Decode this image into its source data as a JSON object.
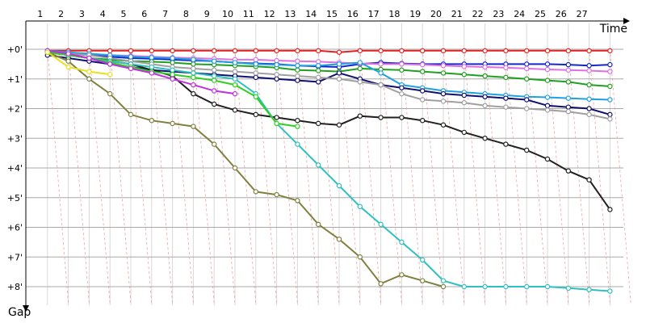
{
  "chart_data": {
    "type": "line",
    "title": "",
    "xlabel": "Time",
    "ylabel": "Gap",
    "x_ticks": [
      "1",
      "2",
      "3",
      "4",
      "5",
      "6",
      "7",
      "8",
      "9",
      "10",
      "11",
      "12",
      "13",
      "14",
      "15",
      "16",
      "17",
      "18",
      "19",
      "20",
      "21",
      "22",
      "23",
      "24",
      "25",
      "26",
      "27"
    ],
    "y_ticks": [
      "+0'",
      "+1'",
      "+2'",
      "+3'",
      "+4'",
      "+5'",
      "+6'",
      "+7'",
      "+8'"
    ],
    "xlim": [
      0,
      28
    ],
    "ylim": [
      0,
      8.5
    ],
    "grid": true,
    "legend": "none",
    "series": [
      {
        "color": "#e62020",
        "x": [
          1,
          2,
          3,
          4,
          5,
          6,
          7,
          8,
          9,
          10,
          11,
          12,
          13,
          14,
          15,
          16,
          17,
          18,
          19,
          20,
          21,
          22,
          23,
          24,
          25,
          26,
          27,
          28
        ],
        "y": [
          0.05,
          0.05,
          0.05,
          0.05,
          0.05,
          0.05,
          0.05,
          0.05,
          0.05,
          0.05,
          0.05,
          0.05,
          0.05,
          0.05,
          0.1,
          0.05,
          0.05,
          0.05,
          0.05,
          0.05,
          0.05,
          0.05,
          0.05,
          0.05,
          0.05,
          0.05,
          0.05,
          0.05
        ]
      },
      {
        "color": "#1428c8",
        "x": [
          1,
          2,
          3,
          4,
          5,
          6,
          7,
          8,
          9,
          10,
          11,
          12,
          13,
          14,
          15,
          16,
          17,
          18,
          19,
          20,
          21,
          22,
          23,
          24,
          25,
          26,
          27,
          28
        ],
        "y": [
          0.1,
          0.15,
          0.2,
          0.25,
          0.3,
          0.32,
          0.35,
          0.38,
          0.4,
          0.45,
          0.48,
          0.5,
          0.55,
          0.58,
          0.6,
          0.5,
          0.45,
          0.48,
          0.5,
          0.5,
          0.5,
          0.5,
          0.5,
          0.5,
          0.5,
          0.52,
          0.55,
          0.52
        ]
      },
      {
        "color": "#e070e0",
        "x": [
          1,
          2,
          3,
          4,
          5,
          6,
          7,
          8,
          9,
          10,
          11,
          12,
          13,
          14,
          15,
          16,
          17,
          18,
          19,
          20,
          21,
          22,
          23,
          24,
          25,
          26,
          27,
          28
        ],
        "y": [
          0.1,
          0.12,
          0.15,
          0.2,
          0.22,
          0.25,
          0.28,
          0.3,
          0.32,
          0.35,
          0.35,
          0.38,
          0.4,
          0.42,
          0.45,
          0.48,
          0.5,
          0.5,
          0.52,
          0.55,
          0.58,
          0.6,
          0.62,
          0.65,
          0.68,
          0.7,
          0.72,
          0.75
        ]
      },
      {
        "color": "#20a020",
        "x": [
          1,
          2,
          3,
          4,
          5,
          6,
          7,
          8,
          9,
          10,
          11,
          12,
          13,
          14,
          15,
          16,
          17,
          18,
          19,
          20,
          21,
          22,
          23,
          24,
          25,
          26,
          27,
          28
        ],
        "y": [
          0.1,
          0.2,
          0.3,
          0.35,
          0.4,
          0.42,
          0.45,
          0.5,
          0.52,
          0.55,
          0.58,
          0.62,
          0.7,
          0.72,
          0.75,
          0.65,
          0.68,
          0.7,
          0.75,
          0.8,
          0.85,
          0.9,
          0.95,
          1.0,
          1.05,
          1.1,
          1.2,
          1.25
        ]
      },
      {
        "color": "#20a0e0",
        "x": [
          1,
          2,
          3,
          4,
          5,
          6,
          7,
          8,
          9,
          10,
          11,
          12,
          13,
          14,
          15,
          16,
          17,
          18,
          19,
          20,
          21,
          22,
          23,
          24,
          25,
          26,
          27,
          28
        ],
        "y": [
          0.05,
          0.1,
          0.15,
          0.2,
          0.25,
          0.28,
          0.3,
          0.35,
          0.4,
          0.45,
          0.5,
          0.52,
          0.55,
          0.55,
          0.5,
          0.45,
          0.8,
          1.2,
          1.3,
          1.4,
          1.45,
          1.5,
          1.55,
          1.6,
          1.62,
          1.65,
          1.68,
          1.7
        ]
      },
      {
        "color": "#101070",
        "x": [
          1,
          2,
          3,
          4,
          5,
          6,
          7,
          8,
          9,
          10,
          11,
          12,
          13,
          14,
          15,
          16,
          17,
          18,
          19,
          20,
          21,
          22,
          23,
          24,
          25,
          26,
          27,
          28
        ],
        "y": [
          0.2,
          0.3,
          0.4,
          0.5,
          0.6,
          0.7,
          0.75,
          0.8,
          0.85,
          0.9,
          0.95,
          1.0,
          1.05,
          1.1,
          0.8,
          1.0,
          1.2,
          1.3,
          1.4,
          1.5,
          1.55,
          1.6,
          1.65,
          1.7,
          1.9,
          1.95,
          2.0,
          2.2
        ]
      },
      {
        "color": "#a0a0a0",
        "x": [
          1,
          2,
          3,
          4,
          5,
          6,
          7,
          8,
          9,
          10,
          11,
          12,
          13,
          14,
          15,
          16,
          17,
          18,
          19,
          20,
          21,
          22,
          23,
          24,
          25,
          26,
          27,
          28
        ],
        "y": [
          0.1,
          0.15,
          0.2,
          0.3,
          0.4,
          0.5,
          0.6,
          0.65,
          0.7,
          0.75,
          0.8,
          0.85,
          0.9,
          0.95,
          1.0,
          1.1,
          1.2,
          1.5,
          1.7,
          1.75,
          1.8,
          1.9,
          1.95,
          2.0,
          2.05,
          2.1,
          2.2,
          2.35
        ]
      },
      {
        "color": "#202020",
        "x": [
          1,
          2,
          3,
          4,
          5,
          6,
          7,
          8,
          9,
          10,
          11,
          12,
          13,
          14,
          15,
          16,
          17,
          18,
          19,
          20,
          21,
          22,
          23,
          24,
          25,
          26,
          27,
          28
        ],
        "y": [
          0.1,
          0.2,
          0.3,
          0.4,
          0.5,
          0.7,
          0.9,
          1.5,
          1.85,
          2.05,
          2.2,
          2.3,
          2.4,
          2.5,
          2.55,
          2.25,
          2.3,
          2.3,
          2.4,
          2.55,
          2.8,
          3.0,
          3.2,
          3.4,
          3.7,
          4.1,
          4.4,
          5.4
        ]
      },
      {
        "color": "#30c0c0",
        "x": [
          1,
          2,
          3,
          4,
          5,
          6,
          7,
          8,
          9,
          10,
          11,
          12,
          13,
          14,
          15,
          16,
          17,
          18,
          19,
          20,
          21,
          22,
          23,
          24,
          25,
          26,
          27,
          28
        ],
        "y": [
          0.1,
          0.2,
          0.3,
          0.4,
          0.5,
          0.6,
          0.7,
          0.8,
          0.9,
          1.0,
          1.5,
          2.5,
          3.2,
          3.9,
          4.6,
          5.3,
          5.9,
          6.5,
          7.1,
          7.8,
          8.0,
          8.0,
          8.0,
          8.0,
          8.0,
          8.05,
          8.1,
          8.15
        ]
      },
      {
        "color": "#808040",
        "x": [
          1,
          2,
          3,
          4,
          5,
          6,
          7,
          8,
          9,
          10,
          11,
          12,
          13,
          14,
          15,
          16,
          17,
          18,
          19,
          20
        ],
        "y": [
          0.1,
          0.4,
          1.0,
          1.5,
          2.2,
          2.4,
          2.5,
          2.6,
          3.2,
          4.0,
          4.8,
          4.9,
          5.1,
          5.9,
          6.4,
          7.0,
          7.9,
          7.6,
          7.8,
          8.0
        ]
      },
      {
        "color": "#30d020",
        "x": [
          1,
          2,
          3,
          4,
          5,
          6,
          7,
          8,
          9,
          10,
          11,
          12,
          13
        ],
        "y": [
          0.1,
          0.2,
          0.3,
          0.45,
          0.6,
          0.75,
          0.85,
          0.95,
          1.05,
          1.2,
          1.6,
          2.5,
          2.6
        ]
      },
      {
        "color": "#c030e0",
        "x": [
          1,
          2,
          3,
          4,
          5,
          6,
          7,
          8,
          9,
          10
        ],
        "y": [
          0.05,
          0.15,
          0.3,
          0.5,
          0.65,
          0.8,
          1.0,
          1.2,
          1.4,
          1.5
        ]
      },
      {
        "color": "#e8e020",
        "x": [
          1,
          2,
          3,
          4
        ],
        "y": [
          0.1,
          0.6,
          0.75,
          0.85
        ]
      }
    ]
  }
}
